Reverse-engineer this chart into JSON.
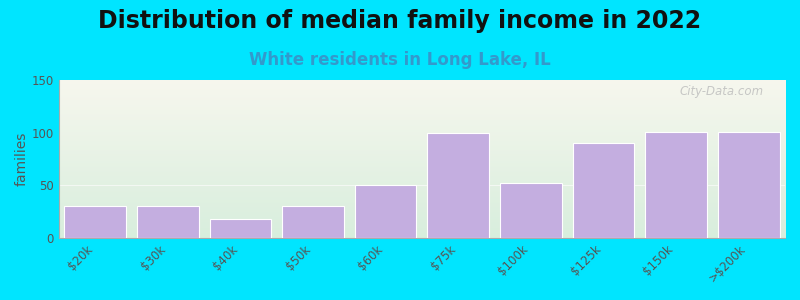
{
  "title": "Distribution of median family income in 2022",
  "subtitle": "White residents in Long Lake, IL",
  "categories": [
    "$20k",
    "$30k",
    "$40k",
    "$50k",
    "$60k",
    "$75k",
    "$100k",
    "$125k",
    "$150k",
    ">$200k"
  ],
  "values": [
    30,
    30,
    18,
    30,
    50,
    100,
    52,
    90,
    101,
    101
  ],
  "bar_color": "#c4aee0",
  "bar_edge_color": "#c4aee0",
  "background_color": "#00e5ff",
  "plot_bg_top": "#f7f7ee",
  "plot_bg_bottom": "#d8eedd",
  "ylabel": "families",
  "ylim": [
    0,
    150
  ],
  "yticks": [
    0,
    50,
    100,
    150
  ],
  "watermark": "City-Data.com",
  "title_fontsize": 17,
  "subtitle_fontsize": 12,
  "subtitle_color": "#3399cc",
  "tick_fontsize": 8.5,
  "ylabel_fontsize": 10
}
